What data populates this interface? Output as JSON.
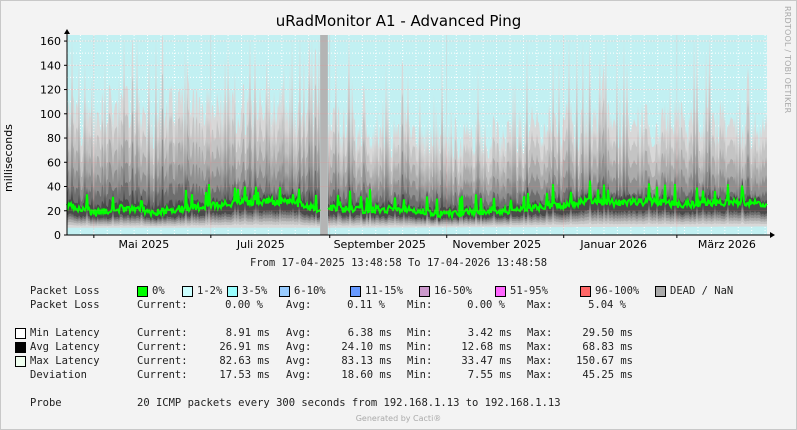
{
  "title": "uRadMonitor A1 - Advanced Ping",
  "side_credit": "RRDTOOL / TOBI OETIKER",
  "footer": "Generated by Cacti®",
  "date_range": "From 17-04-2025 13:48:58 To 17-04-2026 13:48:58",
  "colors": {
    "plot_bg": "#c2f0f2",
    "grid": "#ffffff",
    "avg_line": "#00ff00",
    "axis": "#000000"
  },
  "chart_data": {
    "type": "area",
    "ylabel": "milliseconds",
    "ylim": [
      0,
      165
    ],
    "yticks": [
      0,
      20,
      40,
      60,
      80,
      100,
      120,
      140,
      160
    ],
    "xlim": [
      "2025-04-17",
      "2026-04-17"
    ],
    "xticks": [
      {
        "label": "Mai 2025",
        "date": "2025-05-01"
      },
      {
        "label": "Juli 2025",
        "date": "2025-07-01"
      },
      {
        "label": "September 2025",
        "date": "2025-09-01"
      },
      {
        "label": "November 2025",
        "date": "2025-11-01"
      },
      {
        "label": "Januar 2026",
        "date": "2026-01-01"
      },
      {
        "label": "März 2026",
        "date": "2026-03-01"
      }
    ],
    "gap": {
      "from": "2025-08-27",
      "to": "2025-08-31"
    },
    "series": [
      {
        "name": "Max Latency",
        "color": "#dcdcdc",
        "x": [
          "2025-04-17",
          "2025-05-01",
          "2025-05-15",
          "2025-06-01",
          "2025-06-15",
          "2025-07-01",
          "2025-07-15",
          "2025-08-01",
          "2025-08-15",
          "2025-08-26",
          "2025-09-01",
          "2025-09-15",
          "2025-10-01",
          "2025-10-15",
          "2025-11-01",
          "2025-11-15",
          "2025-12-01",
          "2025-12-15",
          "2026-01-01",
          "2026-01-15",
          "2026-02-01",
          "2026-02-15",
          "2026-03-01",
          "2026-03-15",
          "2026-04-01",
          "2026-04-17"
        ],
        "values": [
          100,
          95,
          110,
          90,
          112,
          100,
          105,
          110,
          100,
          95,
          92,
          88,
          85,
          80,
          78,
          85,
          82,
          90,
          92,
          90,
          95,
          90,
          95,
          92,
          95,
          85
        ]
      },
      {
        "name": "Avg Latency",
        "color": "#00ff00",
        "x": [
          "2025-04-17",
          "2025-05-01",
          "2025-05-15",
          "2025-06-01",
          "2025-06-15",
          "2025-07-01",
          "2025-07-15",
          "2025-08-01",
          "2025-08-15",
          "2025-08-26",
          "2025-09-01",
          "2025-09-15",
          "2025-10-01",
          "2025-10-15",
          "2025-11-01",
          "2025-11-15",
          "2025-12-01",
          "2025-12-15",
          "2026-01-01",
          "2026-01-15",
          "2026-02-01",
          "2026-02-15",
          "2026-03-01",
          "2026-03-15",
          "2026-04-01",
          "2026-04-17"
        ],
        "values": [
          25,
          18,
          22,
          19,
          22,
          24,
          27,
          28,
          26,
          21,
          22,
          21,
          21,
          20,
          17,
          19,
          20,
          23,
          25,
          28,
          26,
          28,
          25,
          26,
          27,
          26
        ]
      },
      {
        "name": "Min Latency",
        "color": "#ffffff",
        "x": [
          "2025-04-17",
          "2025-08-26",
          "2025-09-01",
          "2026-04-17"
        ],
        "values": [
          6,
          6,
          6,
          7
        ]
      }
    ]
  },
  "legend": {
    "packet_loss_label": "Packet Loss",
    "packet_loss_items": [
      {
        "label": "0%",
        "color": "#00ff00"
      },
      {
        "label": "1-2%",
        "color": "#ccffff"
      },
      {
        "label": "3-5%",
        "color": "#99ffff"
      },
      {
        "label": "6-10%",
        "color": "#99ccff"
      },
      {
        "label": "11-15%",
        "color": "#6699ff"
      },
      {
        "label": "16-50%",
        "color": "#cc99cc"
      },
      {
        "label": "51-95%",
        "color": "#ff66ff"
      },
      {
        "label": "96-100%",
        "color": "#ff6666"
      },
      {
        "label": "DEAD / NaN",
        "color": "#aaaaaa"
      }
    ],
    "packet_loss_stats": {
      "current_label": "Current:",
      "current": "0.00 %",
      "avg_label": "Avg:",
      "avg": "0.11 %",
      "min_label": "Min:",
      "min": "0.00 %",
      "max_label": "Max:",
      "max": "5.04 %"
    },
    "stat_rows": [
      {
        "label": "Min Latency",
        "swatch": "#ffffff",
        "current": "8.91 ms",
        "avg": "6.38 ms",
        "min": "3.42 ms",
        "max": "29.50 ms"
      },
      {
        "label": "Avg Latency",
        "swatch": "#000000",
        "current": "26.91 ms",
        "avg": "24.10 ms",
        "min": "12.68 ms",
        "max": "68.83 ms"
      },
      {
        "label": "Max Latency",
        "swatch": "#f0fff0",
        "current": "82.63 ms",
        "avg": "83.13 ms",
        "min": "33.47 ms",
        "max": "150.67 ms"
      },
      {
        "label": "Deviation",
        "swatch": "",
        "current": "17.53 ms",
        "avg": "18.60 ms",
        "min": "7.55 ms",
        "max": "45.25 ms"
      }
    ],
    "col_labels": {
      "current": "Current:",
      "avg": "Avg:",
      "min": "Min:",
      "max": "Max:"
    },
    "probe_label": "Probe",
    "probe_text": "20 ICMP packets every 300 seconds from 192.168.1.13 to 192.168.1.13"
  }
}
